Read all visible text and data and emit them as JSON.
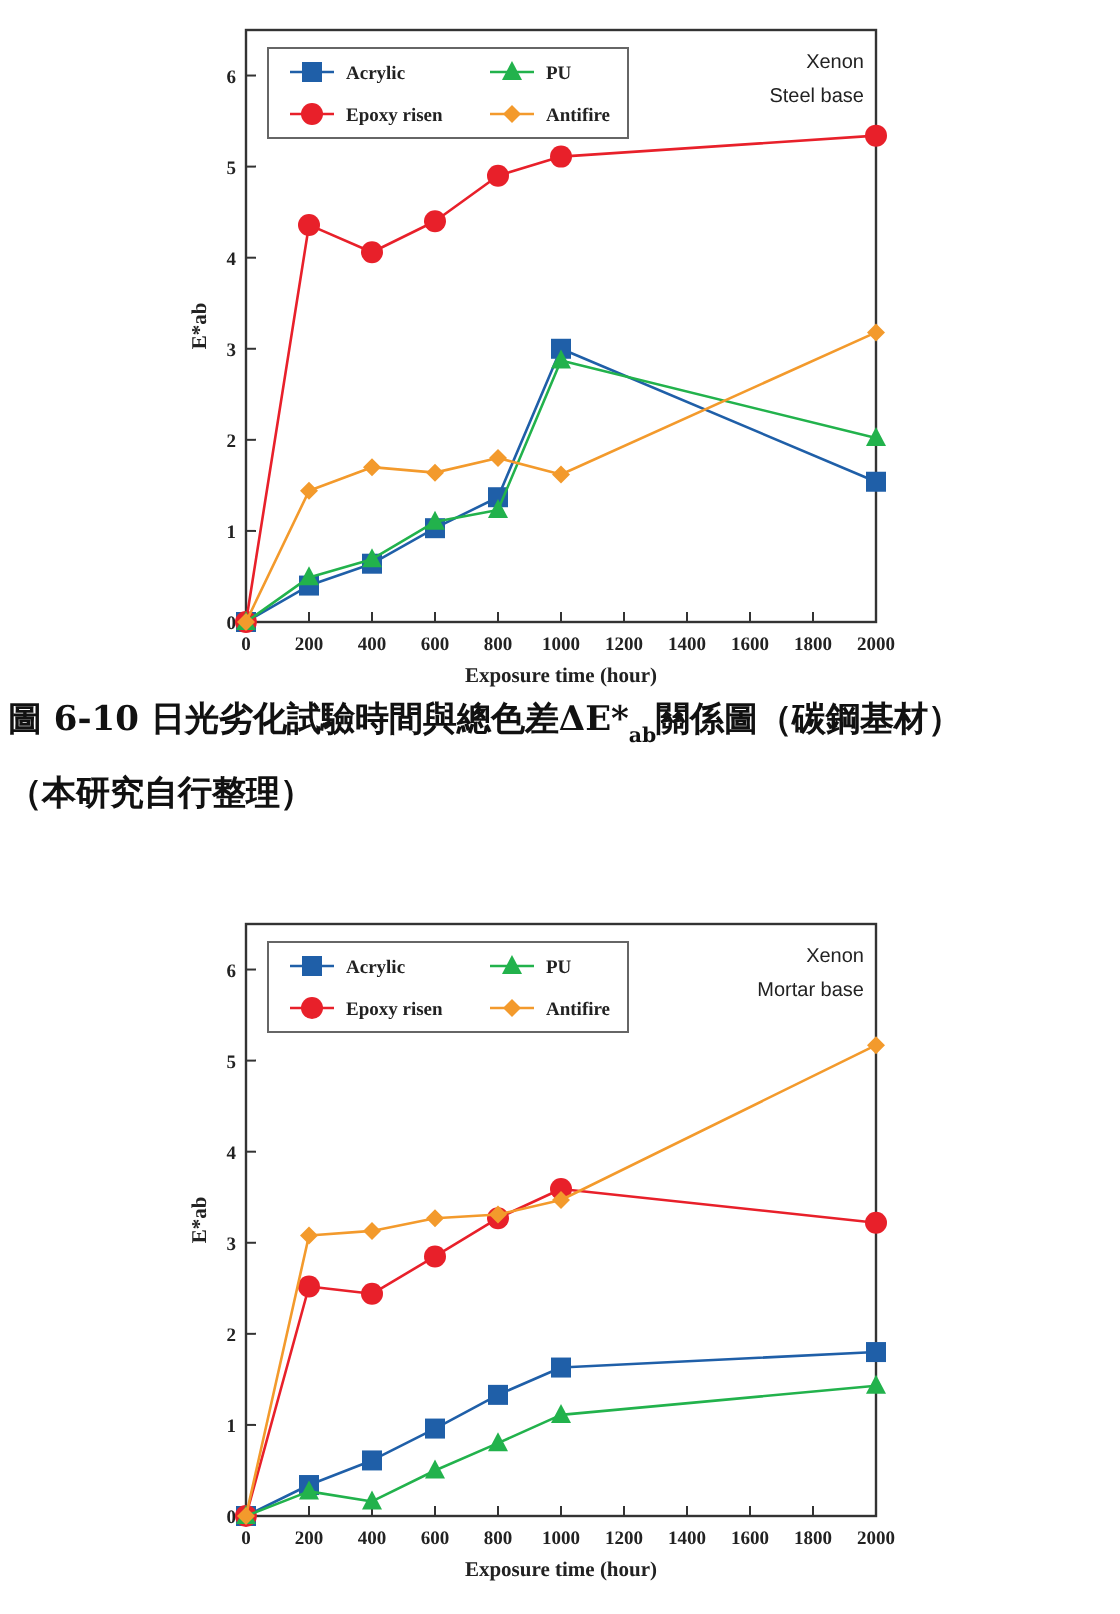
{
  "chart_data": [
    {
      "type": "line",
      "xlabel": "Exposure time (hour)",
      "ylabel": "E*ab",
      "x": [
        0,
        200,
        400,
        600,
        800,
        1000,
        2000
      ],
      "xlim": [
        0,
        2000
      ],
      "ylim": [
        0,
        6.5
      ],
      "xticks": [
        0,
        200,
        400,
        600,
        800,
        1000,
        1200,
        1400,
        1600,
        1800,
        2000
      ],
      "yticks": [
        0,
        1,
        2,
        3,
        4,
        5,
        6
      ],
      "legend": "top left",
      "grid": false,
      "line_style": "solid",
      "annotations": [
        "Xenon",
        "Steel base",
        "圖 6-10 日光劣化試驗時間與總色差ΔE*$_{ab}$關係圖（碳鋼基材）",
        "（本研究自行整理）"
      ],
      "series": [
        {
          "name": "Acrylic",
          "color": "#1f5fa8",
          "marker": "square",
          "values": [
            0,
            0.4,
            0.64,
            1.03,
            1.37,
            3.0,
            1.54
          ]
        },
        {
          "name": "Epoxy risen",
          "color": "#e8202a",
          "marker": "circle",
          "values": [
            0,
            4.36,
            4.06,
            4.4,
            4.9,
            5.11,
            5.34
          ]
        },
        {
          "name": "PU",
          "color": "#22b24c",
          "marker": "triangle",
          "values": [
            0,
            0.49,
            0.69,
            1.1,
            1.23,
            2.87,
            2.02
          ]
        },
        {
          "name": "Antifire",
          "color": "#f39a2c",
          "marker": "diamond",
          "values": [
            0,
            1.44,
            1.7,
            1.64,
            1.8,
            1.62,
            3.18
          ]
        }
      ]
    },
    {
      "type": "line",
      "xlabel": "Exposure time (hour)",
      "ylabel": "E*ab",
      "x": [
        0,
        200,
        400,
        600,
        800,
        1000,
        2000
      ],
      "xlim": [
        0,
        2000
      ],
      "ylim": [
        0,
        6.5
      ],
      "xticks": [
        0,
        200,
        400,
        600,
        800,
        1000,
        1200,
        1400,
        1600,
        1800,
        2000
      ],
      "yticks": [
        0,
        1,
        2,
        3,
        4,
        5,
        6
      ],
      "legend": "top left",
      "grid": false,
      "line_style": "solid",
      "annotations": [
        "Xenon",
        "Mortar base"
      ],
      "series": [
        {
          "name": "Acrylic",
          "color": "#1f5fa8",
          "marker": "square",
          "values": [
            0,
            0.34,
            0.61,
            0.96,
            1.33,
            1.63,
            1.8
          ]
        },
        {
          "name": "Epoxy risen",
          "color": "#e8202a",
          "marker": "circle",
          "values": [
            0,
            2.52,
            2.44,
            2.85,
            3.27,
            3.59,
            3.22
          ]
        },
        {
          "name": "PU",
          "color": "#22b24c",
          "marker": "triangle",
          "values": [
            0,
            0.27,
            0.16,
            0.5,
            0.8,
            1.11,
            1.43
          ]
        },
        {
          "name": "Antifire",
          "color": "#f39a2c",
          "marker": "diamond",
          "values": [
            0,
            3.08,
            3.13,
            3.27,
            3.31,
            3.47,
            5.17
          ]
        }
      ]
    }
  ]
}
